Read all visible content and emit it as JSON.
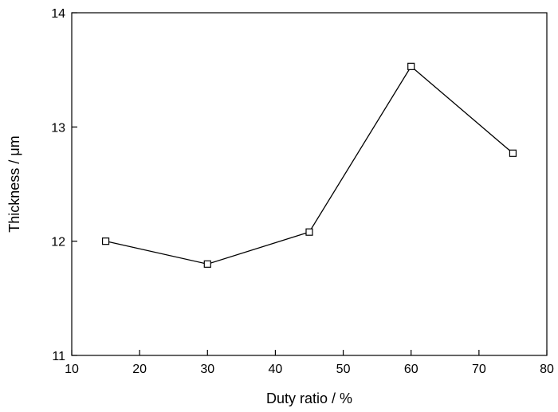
{
  "chart_data": {
    "type": "line",
    "title": "",
    "xlabel": "Duty ratio / %",
    "ylabel": "Thickness / μm",
    "xlim": [
      10,
      80
    ],
    "ylim": [
      11,
      14
    ],
    "x_ticks": [
      10,
      20,
      30,
      40,
      50,
      60,
      70,
      80
    ],
    "y_ticks": [
      11,
      12,
      13,
      14
    ],
    "grid": false,
    "legend": "none",
    "marker": "open-square",
    "colors": {
      "line": "#000000",
      "marker_fill": "#ffffff",
      "axes": "#000000"
    },
    "series": [
      {
        "x": [
          15,
          30,
          45,
          60,
          75
        ],
        "y": [
          12.0,
          11.8,
          12.08,
          13.53,
          12.77
        ]
      }
    ]
  }
}
